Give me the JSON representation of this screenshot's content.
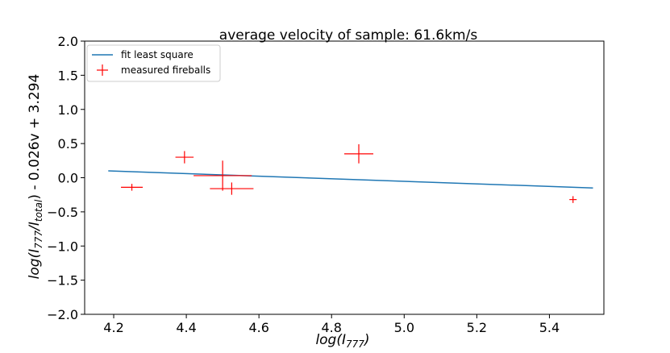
{
  "chart_data": {
    "type": "scatter",
    "title": "average velocity of sample: 61.6km/s",
    "xlabel": "log(I777)",
    "ylabel": "log(I777/Itotal) - 0.026v + 3.294",
    "xlim": [
      4.12,
      5.55
    ],
    "ylim": [
      -2.0,
      2.0
    ],
    "xticks": [
      4.2,
      4.4,
      4.6,
      4.8,
      5.0,
      5.2,
      5.4
    ],
    "yticks": [
      -2.0,
      -1.5,
      -1.0,
      -0.5,
      0.0,
      0.5,
      1.0,
      1.5,
      2.0
    ],
    "xtick_labels": [
      "4.2",
      "4.4",
      "4.6",
      "4.8",
      "5.0",
      "5.2",
      "5.4"
    ],
    "ytick_labels": [
      "−2.0",
      "−1.5",
      "−1.0",
      "−0.5",
      "0.0",
      "0.5",
      "1.0",
      "1.5",
      "2.0"
    ],
    "legend_position": "top-left",
    "series": [
      {
        "name": "fit least square",
        "kind": "line",
        "color": "#1f77b4",
        "x": [
          4.185,
          5.52
        ],
        "y": [
          0.1,
          -0.15
        ]
      },
      {
        "name": "measured fireballs",
        "kind": "errorbar-markers",
        "color": "#ff0000",
        "points": [
          {
            "x": 4.25,
            "y": -0.14,
            "xerr": 0.03,
            "yerr": 0.05
          },
          {
            "x": 4.395,
            "y": 0.3,
            "xerr": 0.025,
            "yerr": 0.09
          },
          {
            "x": 4.5,
            "y": 0.03,
            "xerr": 0.08,
            "yerr": 0.22
          },
          {
            "x": 4.525,
            "y": -0.16,
            "xerr": 0.06,
            "yerr": 0.09
          },
          {
            "x": 4.875,
            "y": 0.35,
            "xerr": 0.04,
            "yerr": 0.14
          },
          {
            "x": 5.465,
            "y": -0.32,
            "xerr": 0.01,
            "yerr": 0.05
          }
        ]
      }
    ]
  }
}
